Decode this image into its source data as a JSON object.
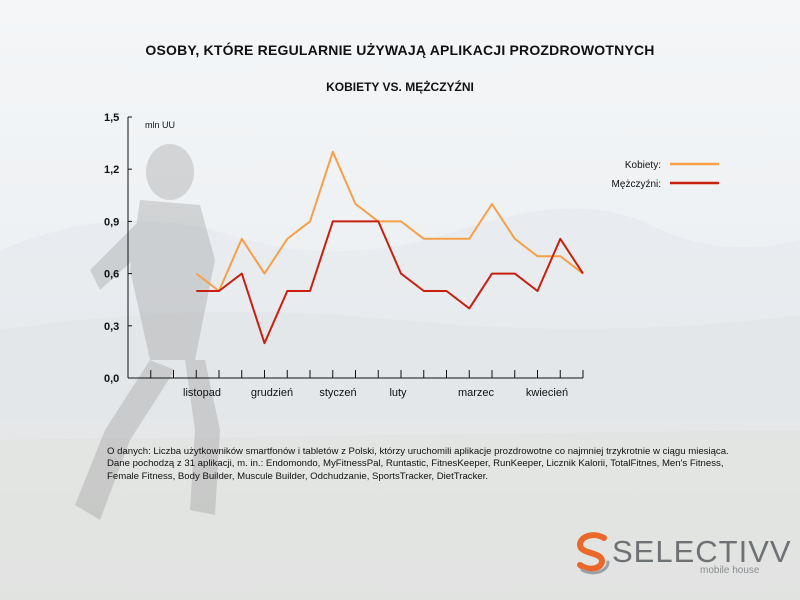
{
  "chart_data": {
    "type": "line",
    "title": "OSOBY, KTÓRE REGULARNIE UŻYWAJĄ APLIKACJI PROZDROWOTNYCH",
    "subtitle": "KOBIETY VS. MĘŻCZYŹNI",
    "ylabel": "mln UU",
    "ylim": [
      0,
      1.5
    ],
    "yticks": [
      "0,0",
      "0,3",
      "0,6",
      "0,9",
      "1,2",
      "1,5"
    ],
    "month_labels": [
      "listopad",
      "grudzień",
      "styczeń",
      "luty",
      "marzec",
      "kwiecień"
    ],
    "grid": false,
    "legend_position": "right",
    "series": [
      {
        "name": "Kobiety:",
        "color": "#f7a048",
        "values": [
          0.6,
          0.5,
          0.8,
          0.6,
          0.8,
          0.9,
          1.3,
          1.0,
          0.9,
          0.9,
          0.8,
          0.8,
          0.8,
          1.0,
          0.8,
          0.7,
          0.7,
          0.6
        ]
      },
      {
        "name": "Mężczyźni:",
        "color": "#c8200f",
        "values": [
          0.5,
          0.5,
          0.6,
          0.2,
          0.5,
          0.5,
          0.9,
          0.9,
          0.9,
          0.6,
          0.5,
          0.5,
          0.4,
          0.6,
          0.6,
          0.5,
          0.8,
          0.6
        ]
      }
    ]
  },
  "note": "O danych: Liczba użytkowników smartfonów i tabletów z Polski, którzy uruchomili aplikacje prozdrowotne co najmniej trzykrotnie w ciągu miesiąca. Dane pochodzą z 31 aplikacji, m. in.: Endomondo, MyFitnessPal, Runtastic, FitnesKeeper, RunKeeper, Licznik Kalorii, TotalFitnes, Men's Fitness, Female Fitness, Body Builder, Muscule Builder, Odchudzanie,  SportsTracker,  DietTracker.",
  "logo": {
    "name": "SELECTIVV",
    "tagline": "mobile house",
    "icon": "selectivv-s-logo-icon"
  }
}
